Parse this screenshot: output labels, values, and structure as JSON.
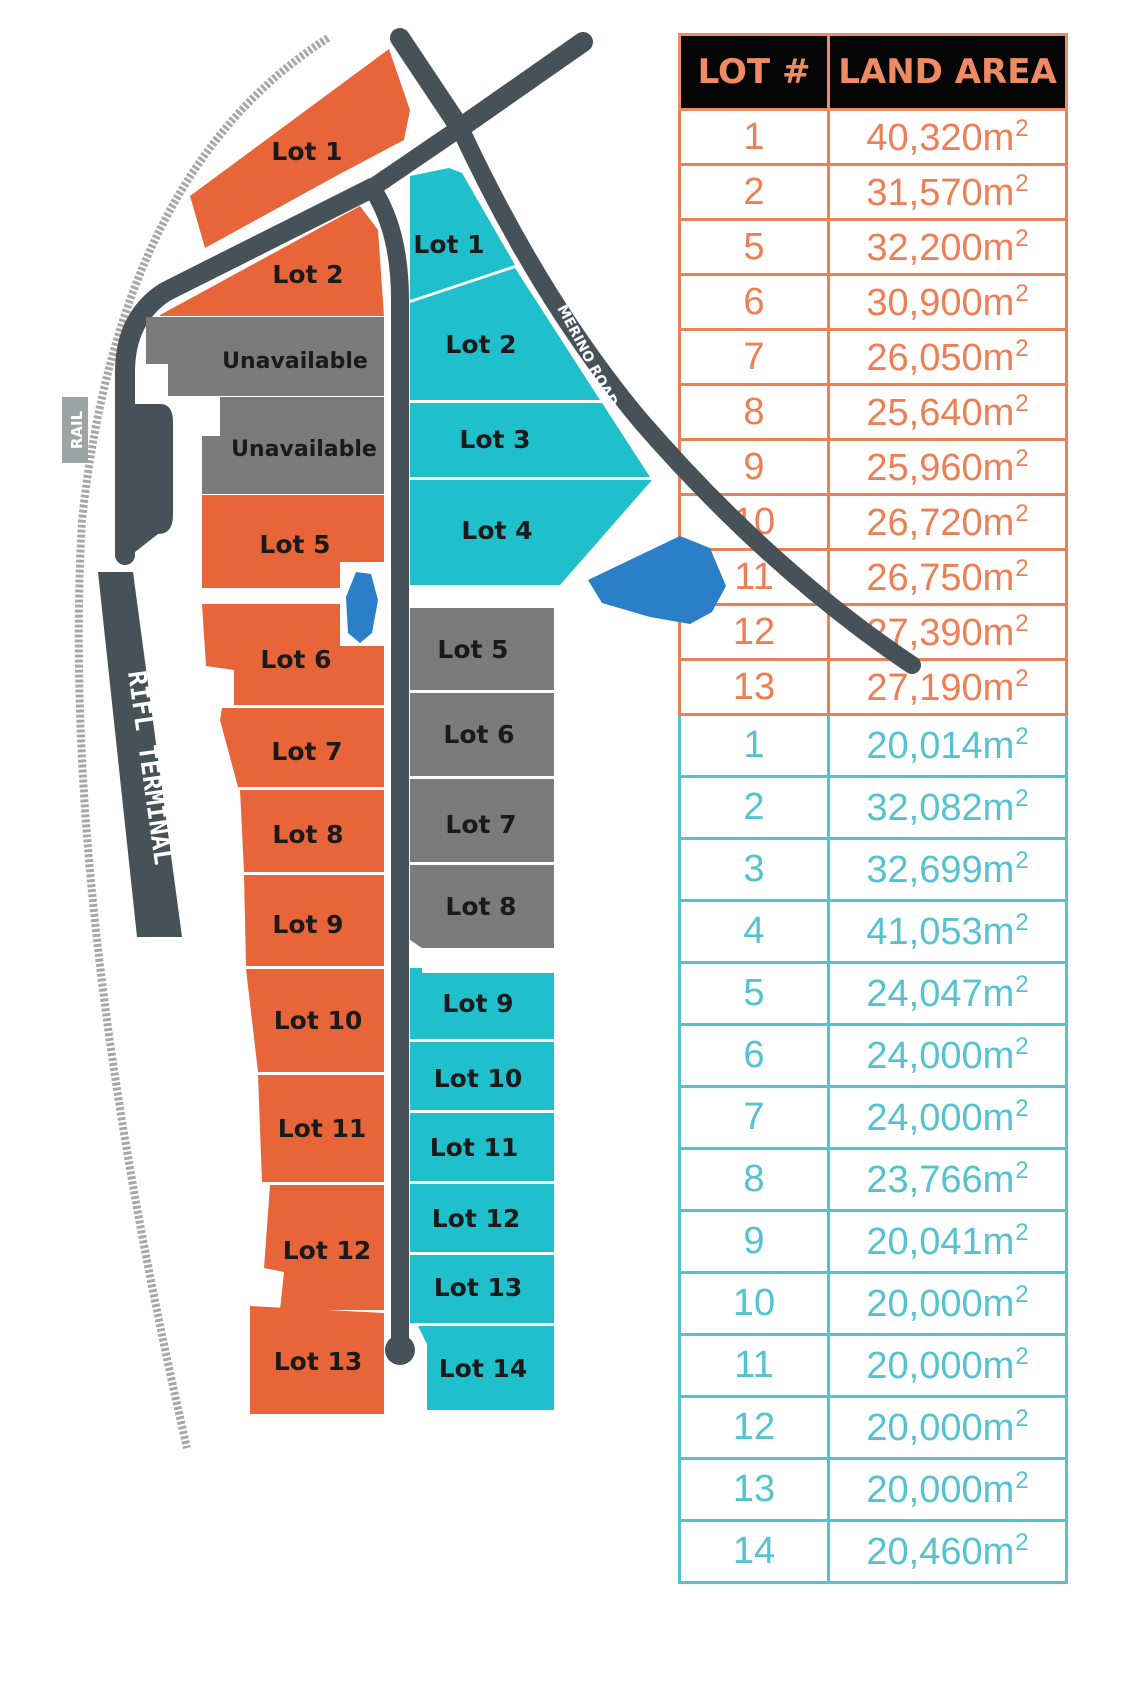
{
  "map": {
    "rail_label": "RAIL",
    "terminal_label": "RIFL TERMINAL",
    "road_label": "MERINO ROAD",
    "east_lots": [
      {
        "label": "Lot 1"
      },
      {
        "label": "Lot 2"
      },
      {
        "label": "Lot 5"
      },
      {
        "label": "Lot 6"
      },
      {
        "label": "Lot 7"
      },
      {
        "label": "Lot 8"
      },
      {
        "label": "Lot 9"
      },
      {
        "label": "Lot 10"
      },
      {
        "label": "Lot 11"
      },
      {
        "label": "Lot 12"
      },
      {
        "label": "Lot 13"
      }
    ],
    "unavailable": [
      {
        "label": "Unavailable"
      },
      {
        "label": "Unavailable"
      }
    ],
    "west_lots": [
      {
        "label": "Lot 1"
      },
      {
        "label": "Lot 2"
      },
      {
        "label": "Lot 3"
      },
      {
        "label": "Lot 4"
      },
      {
        "label": "Lot 5"
      },
      {
        "label": "Lot 6"
      },
      {
        "label": "Lot 7"
      },
      {
        "label": "Lot 8"
      },
      {
        "label": "Lot 9"
      },
      {
        "label": "Lot 10"
      },
      {
        "label": "Lot 11"
      },
      {
        "label": "Lot 12"
      },
      {
        "label": "Lot 13"
      },
      {
        "label": "Lot 14"
      }
    ],
    "colors": {
      "orange_lots": "#e8653a",
      "teal_lots": "#1fbfcb",
      "grey_lots": "#7b7b7b",
      "roads": "#475258",
      "water": "#2a7fc8",
      "rail": "#a8a8a8"
    }
  },
  "table": {
    "headers": {
      "lot": "LOT #",
      "area": "LAND AREA"
    },
    "unit_suffix": "2",
    "header_color": "#ef8a63",
    "east_color": "#ec7f55",
    "west_color": "#55c2cf",
    "east_rows": [
      {
        "lot": "1",
        "area": "40,320m"
      },
      {
        "lot": "2",
        "area": "31,570m"
      },
      {
        "lot": "5",
        "area": "32,200m"
      },
      {
        "lot": "6",
        "area": "30,900m"
      },
      {
        "lot": "7",
        "area": "26,050m"
      },
      {
        "lot": "8",
        "area": "25,640m"
      },
      {
        "lot": "9",
        "area": "25,960m"
      },
      {
        "lot": "10",
        "area": "26,720m"
      },
      {
        "lot": "11",
        "area": "26,750m"
      },
      {
        "lot": "12",
        "area": "27,390m"
      },
      {
        "lot": "13",
        "area": "27,190m"
      }
    ],
    "west_rows": [
      {
        "lot": "1",
        "area": "20,014m"
      },
      {
        "lot": "2",
        "area": "32,082m"
      },
      {
        "lot": "3",
        "area": "32,699m"
      },
      {
        "lot": "4",
        "area": "41,053m"
      },
      {
        "lot": "5",
        "area": "24,047m"
      },
      {
        "lot": "6",
        "area": "24,000m"
      },
      {
        "lot": "7",
        "area": "24,000m"
      },
      {
        "lot": "8",
        "area": "23,766m"
      },
      {
        "lot": "9",
        "area": "20,041m"
      },
      {
        "lot": "10",
        "area": "20,000m"
      },
      {
        "lot": "11",
        "area": "20,000m"
      },
      {
        "lot": "12",
        "area": "20,000m"
      },
      {
        "lot": "13",
        "area": "20,000m"
      },
      {
        "lot": "14",
        "area": "20,460m"
      }
    ]
  }
}
